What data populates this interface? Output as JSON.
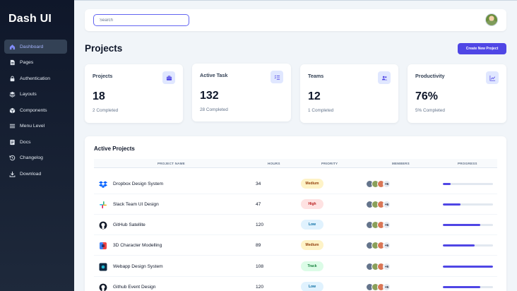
{
  "app": {
    "brand": "Dash UI"
  },
  "sidebar": {
    "items": [
      {
        "label": "Dashboard",
        "icon": "home-icon",
        "active": true
      },
      {
        "label": "Pages",
        "icon": "file-icon"
      },
      {
        "label": "Authentication",
        "icon": "lock-icon"
      },
      {
        "label": "Layouts",
        "icon": "layers-icon"
      },
      {
        "label": "Components",
        "icon": "box-icon"
      },
      {
        "label": "Menu Level",
        "icon": "menu-icon"
      },
      {
        "label": "Docs",
        "icon": "docs-icon"
      },
      {
        "label": "Changelog",
        "icon": "history-icon"
      },
      {
        "label": "Download",
        "icon": "download-icon"
      }
    ]
  },
  "header": {
    "search_placeholder": "Search"
  },
  "page": {
    "title": "Projects",
    "create_button": "Create New Project"
  },
  "stats": [
    {
      "label": "Projects",
      "value": "18",
      "sub": "2 Completed",
      "icon": "briefcase-icon"
    },
    {
      "label": "Active Task",
      "value": "132",
      "sub": "28 Completed",
      "icon": "list-check-icon"
    },
    {
      "label": "Teams",
      "value": "12",
      "sub": "1 Completed",
      "icon": "people-icon"
    },
    {
      "label": "Productivity",
      "value": "76%",
      "sub": "5% Completed",
      "icon": "chart-line-icon"
    }
  ],
  "active_projects": {
    "title": "Active Projects",
    "columns": [
      "PROJECT NAME",
      "HOURS",
      "PRIORITY",
      "MEMBERS",
      "PROGRESS"
    ],
    "rows": [
      {
        "name": "Dropbox Design System",
        "hours": "34",
        "priority": "Medium",
        "members_extra": "+5",
        "progress": 0.15,
        "logo": "dropbox-logo"
      },
      {
        "name": "Slack Team UI Design",
        "hours": "47",
        "priority": "High",
        "members_extra": "+5",
        "progress": 0.35,
        "logo": "slack-logo"
      },
      {
        "name": "GitHub Satellite",
        "hours": "120",
        "priority": "Low",
        "members_extra": "+5",
        "progress": 0.75,
        "logo": "github-logo"
      },
      {
        "name": "3D Character Modelling",
        "hours": "89",
        "priority": "Medium",
        "members_extra": "+5",
        "progress": 0.63,
        "logo": "3d-logo"
      },
      {
        "name": "Webapp Design System",
        "hours": "108",
        "priority": "Track",
        "members_extra": "+5",
        "progress": 1.0,
        "logo": "webapp-logo"
      },
      {
        "name": "Github Event Design",
        "hours": "120",
        "priority": "Low",
        "members_extra": "+5",
        "progress": 0.75,
        "logo": "github-logo"
      }
    ]
  },
  "priority_colors": {
    "Medium": {
      "bg": "#fef3c7",
      "fg": "#92400e"
    },
    "High": {
      "bg": "#fee2e2",
      "fg": "#b91c1c"
    },
    "Low": {
      "bg": "#e0f2fe",
      "fg": "#0369a1"
    },
    "Track": {
      "bg": "#dcfce7",
      "fg": "#15803d"
    }
  },
  "colors": {
    "accent": "#4f46e5",
    "sidebar_bg": "#0f172a",
    "active_item_bg": "#334155"
  }
}
